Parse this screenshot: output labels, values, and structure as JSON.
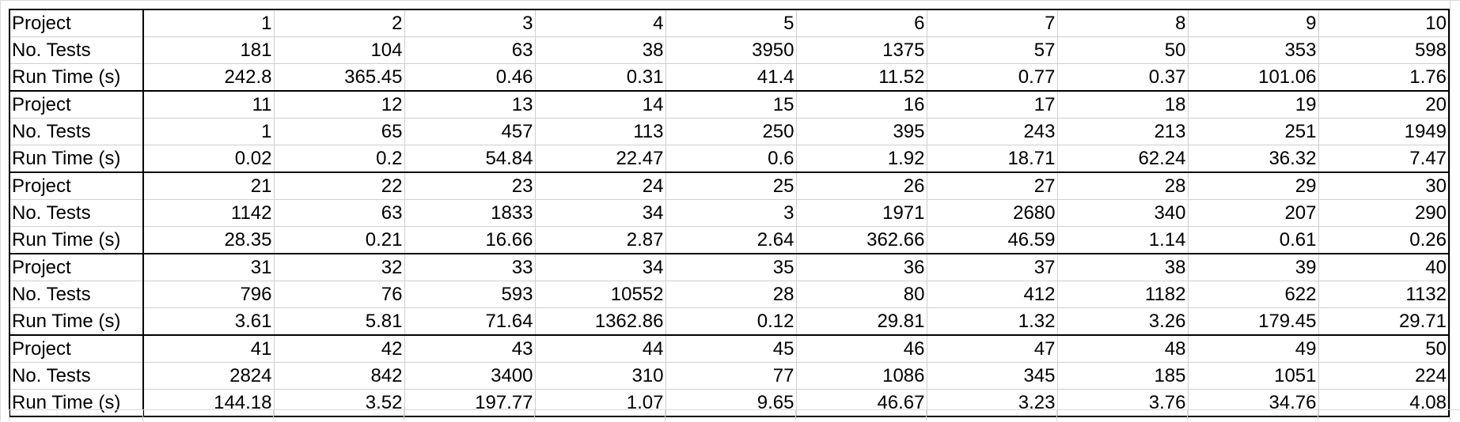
{
  "labels": {
    "project": "Project",
    "tests": "No. Tests",
    "runtime": "Run Time (s)"
  },
  "blocks": [
    {
      "project": [
        "1",
        "2",
        "3",
        "4",
        "5",
        "6",
        "7",
        "8",
        "9",
        "10"
      ],
      "tests": [
        "181",
        "104",
        "63",
        "38",
        "3950",
        "1375",
        "57",
        "50",
        "353",
        "598"
      ],
      "runtime": [
        "242.8",
        "365.45",
        "0.46",
        "0.31",
        "41.4",
        "11.52",
        "0.77",
        "0.37",
        "101.06",
        "1.76"
      ]
    },
    {
      "project": [
        "11",
        "12",
        "13",
        "14",
        "15",
        "16",
        "17",
        "18",
        "19",
        "20"
      ],
      "tests": [
        "1",
        "65",
        "457",
        "113",
        "250",
        "395",
        "243",
        "213",
        "251",
        "1949"
      ],
      "runtime": [
        "0.02",
        "0.2",
        "54.84",
        "22.47",
        "0.6",
        "1.92",
        "18.71",
        "62.24",
        "36.32",
        "7.47"
      ]
    },
    {
      "project": [
        "21",
        "22",
        "23",
        "24",
        "25",
        "26",
        "27",
        "28",
        "29",
        "30"
      ],
      "tests": [
        "1142",
        "63",
        "1833",
        "34",
        "3",
        "1971",
        "2680",
        "340",
        "207",
        "290"
      ],
      "runtime": [
        "28.35",
        "0.21",
        "16.66",
        "2.87",
        "2.64",
        "362.66",
        "46.59",
        "1.14",
        "0.61",
        "0.26"
      ]
    },
    {
      "project": [
        "31",
        "32",
        "33",
        "34",
        "35",
        "36",
        "37",
        "38",
        "39",
        "40"
      ],
      "tests": [
        "796",
        "76",
        "593",
        "10552",
        "28",
        "80",
        "412",
        "1182",
        "622",
        "1132"
      ],
      "runtime": [
        "3.61",
        "5.81",
        "71.64",
        "1362.86",
        "0.12",
        "29.81",
        "1.32",
        "3.26",
        "179.45",
        "29.71"
      ]
    },
    {
      "project": [
        "41",
        "42",
        "43",
        "44",
        "45",
        "46",
        "47",
        "48",
        "49",
        "50"
      ],
      "tests": [
        "2824",
        "842",
        "3400",
        "310",
        "77",
        "1086",
        "345",
        "185",
        "1051",
        "224"
      ],
      "runtime": [
        "144.18",
        "3.52",
        "197.77",
        "1.07",
        "9.65",
        "46.67",
        "3.23",
        "3.76",
        "34.76",
        "4.08"
      ]
    }
  ]
}
